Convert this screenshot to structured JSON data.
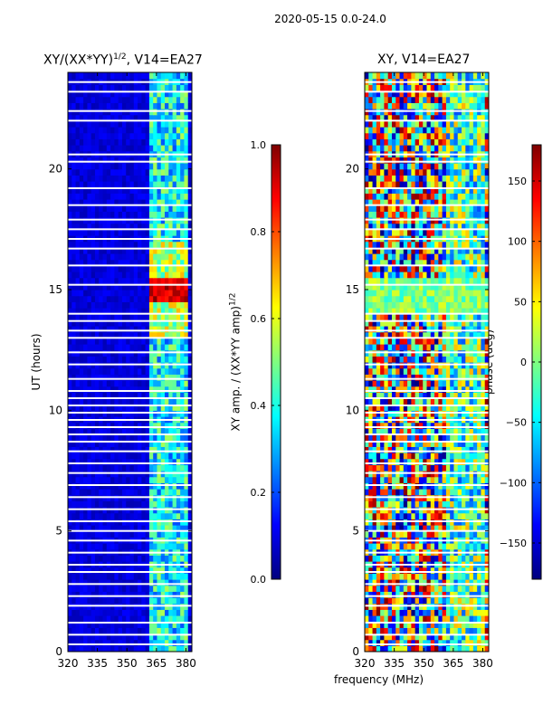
{
  "figure": {
    "title": "2020-05-15 0.0-24.0",
    "shared_xlabel": "frequency (MHz)"
  },
  "colors": {
    "jet": [
      "#00007f",
      "#0000ff",
      "#007fff",
      "#00ffff",
      "#7fff7f",
      "#ffff00",
      "#ff7f00",
      "#ff0000",
      "#7f0000"
    ],
    "axis": "#000000",
    "gap": "#ffffff"
  },
  "chart_data": [
    {
      "type": "heatmap",
      "title": "XY/(XX*YY)",
      "title_superscript": "1/2",
      "title_suffix": ", V14=EA27",
      "xlabel": "",
      "ylabel": "UT (hours)",
      "xlim": [
        320,
        383
      ],
      "ylim": [
        0,
        24
      ],
      "xticks": [
        320,
        335,
        350,
        365,
        380
      ],
      "yticks": [
        0,
        5,
        10,
        15,
        20
      ],
      "colorbar": {
        "label": "XY amp. / (XX*YY amp)",
        "label_superscript": "1/2",
        "range": [
          0.0,
          1.0
        ],
        "ticks": [
          "0.0",
          "0.2",
          "0.4",
          "0.6",
          "0.8",
          "1.0"
        ]
      },
      "description": "Mostly low values (~0.1) across 320-360 MHz; 362-380 MHz band shows higher values (0.3-0.6) with peak ~1.0 near UT 15"
    },
    {
      "type": "heatmap",
      "title": "XY, V14=EA27",
      "xlabel": "frequency (MHz)",
      "ylabel": "",
      "xlim": [
        320,
        383
      ],
      "ylim": [
        0,
        24
      ],
      "xticks": [
        320,
        335,
        350,
        365,
        380
      ],
      "yticks": [
        0,
        5,
        10,
        15,
        20
      ],
      "colorbar": {
        "label": "phase (deg)",
        "range": [
          -180,
          180
        ],
        "ticks": [
          "−150",
          "−100",
          "−50",
          "0",
          "50",
          "100",
          "150"
        ]
      },
      "description": "Phase varies widely from -180 to 180 deg with noisy structure"
    }
  ],
  "gap_rows_hours": [
    0.3,
    0.7,
    1.2,
    1.9,
    2.3,
    2.8,
    3.3,
    3.6,
    4.1,
    4.6,
    5.0,
    5.4,
    5.9,
    6.4,
    6.9,
    7.4,
    7.8,
    8.3,
    8.7,
    9.0,
    9.3,
    9.6,
    9.9,
    10.2,
    10.5,
    10.8,
    11.3,
    11.9,
    12.4,
    13.0,
    13.3,
    13.7,
    14.0,
    15.2,
    16.0,
    16.7,
    17.1,
    17.5,
    17.9,
    18.5,
    19.2,
    20.3,
    20.6,
    22.0,
    22.4,
    23.2,
    23.6
  ]
}
